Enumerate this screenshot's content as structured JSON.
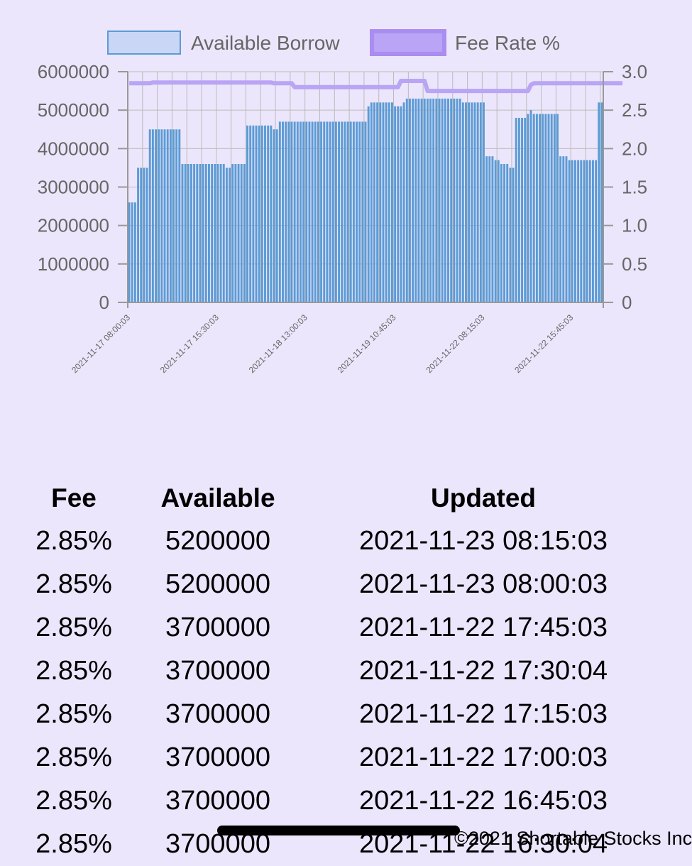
{
  "chart_data": {
    "type": "bar",
    "legend": {
      "position": "top",
      "entries": [
        {
          "name": "Available Borrow",
          "fill": "#c9d6f5",
          "stroke": "#5b9bd5"
        },
        {
          "name": "Fee Rate %",
          "fill": "#b9a4f5",
          "stroke": "#a98df0"
        }
      ]
    },
    "y_left": {
      "min": 0,
      "max": 6000000,
      "ticks": [
        "0",
        "1000000",
        "2000000",
        "3000000",
        "4000000",
        "5000000",
        "6000000"
      ]
    },
    "y_right": {
      "min": 0,
      "max": 3.0,
      "ticks": [
        "0",
        "0.5",
        "1.0",
        "1.5",
        "2.0",
        "2.5",
        "3.0"
      ]
    },
    "x_tick_labels": [
      "2021-11-17 08:00:03",
      "2021-11-17 15:30:03",
      "2021-11-18 13:00:03",
      "2021-11-19 10:45:03",
      "2021-11-22 08:15:03",
      "2021-11-22 15:45:03"
    ],
    "x_tick_label_indices": [
      0,
      30,
      60,
      90,
      120,
      150
    ],
    "grid": true,
    "colors": {
      "bar": "#5b9bd5",
      "line": "#b9a4f5",
      "grid": "#bbbbbb",
      "axis": "#999999"
    },
    "series": [
      {
        "name": "Available Borrow",
        "type": "bar",
        "values": [
          2600000,
          2600000,
          2600000,
          3500000,
          3500000,
          3500000,
          3500000,
          4500000,
          4500000,
          4500000,
          4500000,
          4500000,
          4500000,
          4500000,
          4500000,
          4500000,
          4500000,
          4500000,
          3600000,
          3600000,
          3600000,
          3600000,
          3600000,
          3600000,
          3600000,
          3600000,
          3600000,
          3600000,
          3600000,
          3600000,
          3600000,
          3600000,
          3600000,
          3500000,
          3500000,
          3600000,
          3600000,
          3600000,
          3600000,
          3600000,
          4600000,
          4600000,
          4600000,
          4600000,
          4600000,
          4600000,
          4600000,
          4600000,
          4600000,
          4500000,
          4500000,
          4700000,
          4700000,
          4700000,
          4700000,
          4700000,
          4700000,
          4700000,
          4700000,
          4700000,
          4700000,
          4700000,
          4700000,
          4700000,
          4700000,
          4700000,
          4700000,
          4700000,
          4700000,
          4700000,
          4700000,
          4700000,
          4700000,
          4700000,
          4700000,
          4700000,
          4700000,
          4700000,
          4700000,
          4700000,
          4700000,
          5100000,
          5200000,
          5200000,
          5200000,
          5200000,
          5200000,
          5200000,
          5200000,
          5200000,
          5100000,
          5100000,
          5100000,
          5200000,
          5300000,
          5300000,
          5300000,
          5300000,
          5300000,
          5300000,
          5300000,
          5300000,
          5300000,
          5300000,
          5300000,
          5300000,
          5300000,
          5300000,
          5300000,
          5300000,
          5300000,
          5300000,
          5300000,
          5200000,
          5200000,
          5200000,
          5200000,
          5200000,
          5200000,
          5200000,
          5200000,
          3800000,
          3800000,
          3800000,
          3700000,
          3700000,
          3600000,
          3600000,
          3600000,
          3500000,
          3500000,
          4800000,
          4800000,
          4800000,
          4800000,
          4900000,
          5000000,
          4900000,
          4900000,
          4900000,
          4900000,
          4900000,
          4900000,
          4900000,
          4900000,
          4900000,
          3800000,
          3800000,
          3800000,
          3700000,
          3700000,
          3700000,
          3700000,
          3700000,
          3700000,
          3700000,
          3700000,
          3700000,
          3700000,
          5200000,
          5200000
        ]
      },
      {
        "name": "Fee Rate %",
        "type": "line",
        "values": [
          2.85,
          2.85,
          2.85,
          2.85,
          2.85,
          2.85,
          2.85,
          2.85,
          2.86,
          2.86,
          2.86,
          2.86,
          2.86,
          2.86,
          2.86,
          2.86,
          2.86,
          2.86,
          2.86,
          2.86,
          2.86,
          2.86,
          2.86,
          2.86,
          2.86,
          2.86,
          2.86,
          2.86,
          2.86,
          2.86,
          2.86,
          2.86,
          2.86,
          2.86,
          2.86,
          2.86,
          2.86,
          2.86,
          2.86,
          2.86,
          2.86,
          2.86,
          2.86,
          2.86,
          2.86,
          2.86,
          2.86,
          2.86,
          2.86,
          2.85,
          2.85,
          2.85,
          2.85,
          2.85,
          2.85,
          2.85,
          2.8,
          2.8,
          2.8,
          2.8,
          2.8,
          2.8,
          2.8,
          2.8,
          2.8,
          2.8,
          2.8,
          2.8,
          2.8,
          2.8,
          2.8,
          2.8,
          2.8,
          2.8,
          2.8,
          2.8,
          2.8,
          2.8,
          2.8,
          2.8,
          2.8,
          2.8,
          2.8,
          2.8,
          2.8,
          2.8,
          2.8,
          2.8,
          2.8,
          2.8,
          2.8,
          2.8,
          2.88,
          2.88,
          2.88,
          2.88,
          2.88,
          2.88,
          2.88,
          2.88,
          2.88,
          2.75,
          2.75,
          2.75,
          2.75,
          2.75,
          2.75,
          2.75,
          2.75,
          2.75,
          2.75,
          2.75,
          2.75,
          2.75,
          2.75,
          2.75,
          2.75,
          2.75,
          2.75,
          2.75,
          2.75,
          2.75,
          2.75,
          2.75,
          2.75,
          2.75,
          2.75,
          2.75,
          2.75,
          2.75,
          2.75,
          2.75,
          2.75,
          2.75,
          2.75,
          2.75,
          2.83,
          2.85,
          2.85,
          2.85,
          2.85,
          2.85,
          2.85,
          2.85,
          2.85,
          2.85,
          2.85,
          2.85,
          2.85,
          2.85,
          2.85,
          2.85,
          2.85,
          2.85,
          2.85,
          2.85,
          2.85,
          2.85,
          2.85,
          2.85,
          2.85,
          2.85,
          2.85,
          2.85,
          2.85,
          2.85,
          2.85,
          2.85
        ]
      }
    ]
  },
  "table": {
    "headers": {
      "fee": "Fee",
      "available": "Available",
      "updated": "Updated"
    },
    "rows": [
      {
        "fee": "2.85%",
        "available": "5200000",
        "updated": "2021-11-23 08:15:03"
      },
      {
        "fee": "2.85%",
        "available": "5200000",
        "updated": "2021-11-23 08:00:03"
      },
      {
        "fee": "2.85%",
        "available": "3700000",
        "updated": "2021-11-22 17:45:03"
      },
      {
        "fee": "2.85%",
        "available": "3700000",
        "updated": "2021-11-22 17:30:04"
      },
      {
        "fee": "2.85%",
        "available": "3700000",
        "updated": "2021-11-22 17:15:03"
      },
      {
        "fee": "2.85%",
        "available": "3700000",
        "updated": "2021-11-22 17:00:03"
      },
      {
        "fee": "2.85%",
        "available": "3700000",
        "updated": "2021-11-22 16:45:03"
      },
      {
        "fee": "2.85%",
        "available": "3700000",
        "updated": "2021-11-22 16:30:04"
      }
    ]
  },
  "footer": {
    "copyright": "©2021 Shortable Stocks Inc"
  }
}
